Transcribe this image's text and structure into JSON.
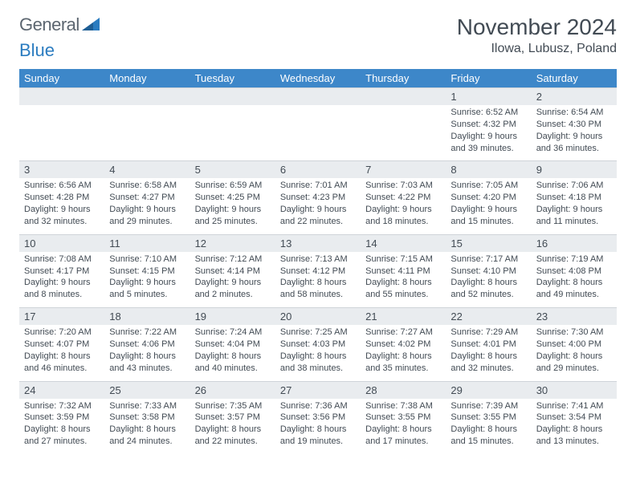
{
  "brand": {
    "general": "General",
    "blue": "Blue"
  },
  "header": {
    "month_title": "November 2024",
    "location": "Ilowa, Lubusz, Poland"
  },
  "colors": {
    "header_bg": "#3d87c9",
    "header_fg": "#ffffff",
    "numrow_bg": "#e9ecef",
    "text": "#424b54",
    "brand_gray": "#5c6670",
    "brand_blue": "#2b7cc0"
  },
  "weekdays": [
    "Sunday",
    "Monday",
    "Tuesday",
    "Wednesday",
    "Thursday",
    "Friday",
    "Saturday"
  ],
  "weeks": [
    {
      "nums": [
        "",
        "",
        "",
        "",
        "",
        "1",
        "2"
      ],
      "cells": [
        null,
        null,
        null,
        null,
        null,
        {
          "sunrise": "Sunrise: 6:52 AM",
          "sunset": "Sunset: 4:32 PM",
          "day1": "Daylight: 9 hours",
          "day2": "and 39 minutes."
        },
        {
          "sunrise": "Sunrise: 6:54 AM",
          "sunset": "Sunset: 4:30 PM",
          "day1": "Daylight: 9 hours",
          "day2": "and 36 minutes."
        }
      ]
    },
    {
      "nums": [
        "3",
        "4",
        "5",
        "6",
        "7",
        "8",
        "9"
      ],
      "cells": [
        {
          "sunrise": "Sunrise: 6:56 AM",
          "sunset": "Sunset: 4:28 PM",
          "day1": "Daylight: 9 hours",
          "day2": "and 32 minutes."
        },
        {
          "sunrise": "Sunrise: 6:58 AM",
          "sunset": "Sunset: 4:27 PM",
          "day1": "Daylight: 9 hours",
          "day2": "and 29 minutes."
        },
        {
          "sunrise": "Sunrise: 6:59 AM",
          "sunset": "Sunset: 4:25 PM",
          "day1": "Daylight: 9 hours",
          "day2": "and 25 minutes."
        },
        {
          "sunrise": "Sunrise: 7:01 AM",
          "sunset": "Sunset: 4:23 PM",
          "day1": "Daylight: 9 hours",
          "day2": "and 22 minutes."
        },
        {
          "sunrise": "Sunrise: 7:03 AM",
          "sunset": "Sunset: 4:22 PM",
          "day1": "Daylight: 9 hours",
          "day2": "and 18 minutes."
        },
        {
          "sunrise": "Sunrise: 7:05 AM",
          "sunset": "Sunset: 4:20 PM",
          "day1": "Daylight: 9 hours",
          "day2": "and 15 minutes."
        },
        {
          "sunrise": "Sunrise: 7:06 AM",
          "sunset": "Sunset: 4:18 PM",
          "day1": "Daylight: 9 hours",
          "day2": "and 11 minutes."
        }
      ]
    },
    {
      "nums": [
        "10",
        "11",
        "12",
        "13",
        "14",
        "15",
        "16"
      ],
      "cells": [
        {
          "sunrise": "Sunrise: 7:08 AM",
          "sunset": "Sunset: 4:17 PM",
          "day1": "Daylight: 9 hours",
          "day2": "and 8 minutes."
        },
        {
          "sunrise": "Sunrise: 7:10 AM",
          "sunset": "Sunset: 4:15 PM",
          "day1": "Daylight: 9 hours",
          "day2": "and 5 minutes."
        },
        {
          "sunrise": "Sunrise: 7:12 AM",
          "sunset": "Sunset: 4:14 PM",
          "day1": "Daylight: 9 hours",
          "day2": "and 2 minutes."
        },
        {
          "sunrise": "Sunrise: 7:13 AM",
          "sunset": "Sunset: 4:12 PM",
          "day1": "Daylight: 8 hours",
          "day2": "and 58 minutes."
        },
        {
          "sunrise": "Sunrise: 7:15 AM",
          "sunset": "Sunset: 4:11 PM",
          "day1": "Daylight: 8 hours",
          "day2": "and 55 minutes."
        },
        {
          "sunrise": "Sunrise: 7:17 AM",
          "sunset": "Sunset: 4:10 PM",
          "day1": "Daylight: 8 hours",
          "day2": "and 52 minutes."
        },
        {
          "sunrise": "Sunrise: 7:19 AM",
          "sunset": "Sunset: 4:08 PM",
          "day1": "Daylight: 8 hours",
          "day2": "and 49 minutes."
        }
      ]
    },
    {
      "nums": [
        "17",
        "18",
        "19",
        "20",
        "21",
        "22",
        "23"
      ],
      "cells": [
        {
          "sunrise": "Sunrise: 7:20 AM",
          "sunset": "Sunset: 4:07 PM",
          "day1": "Daylight: 8 hours",
          "day2": "and 46 minutes."
        },
        {
          "sunrise": "Sunrise: 7:22 AM",
          "sunset": "Sunset: 4:06 PM",
          "day1": "Daylight: 8 hours",
          "day2": "and 43 minutes."
        },
        {
          "sunrise": "Sunrise: 7:24 AM",
          "sunset": "Sunset: 4:04 PM",
          "day1": "Daylight: 8 hours",
          "day2": "and 40 minutes."
        },
        {
          "sunrise": "Sunrise: 7:25 AM",
          "sunset": "Sunset: 4:03 PM",
          "day1": "Daylight: 8 hours",
          "day2": "and 38 minutes."
        },
        {
          "sunrise": "Sunrise: 7:27 AM",
          "sunset": "Sunset: 4:02 PM",
          "day1": "Daylight: 8 hours",
          "day2": "and 35 minutes."
        },
        {
          "sunrise": "Sunrise: 7:29 AM",
          "sunset": "Sunset: 4:01 PM",
          "day1": "Daylight: 8 hours",
          "day2": "and 32 minutes."
        },
        {
          "sunrise": "Sunrise: 7:30 AM",
          "sunset": "Sunset: 4:00 PM",
          "day1": "Daylight: 8 hours",
          "day2": "and 29 minutes."
        }
      ]
    },
    {
      "nums": [
        "24",
        "25",
        "26",
        "27",
        "28",
        "29",
        "30"
      ],
      "cells": [
        {
          "sunrise": "Sunrise: 7:32 AM",
          "sunset": "Sunset: 3:59 PM",
          "day1": "Daylight: 8 hours",
          "day2": "and 27 minutes."
        },
        {
          "sunrise": "Sunrise: 7:33 AM",
          "sunset": "Sunset: 3:58 PM",
          "day1": "Daylight: 8 hours",
          "day2": "and 24 minutes."
        },
        {
          "sunrise": "Sunrise: 7:35 AM",
          "sunset": "Sunset: 3:57 PM",
          "day1": "Daylight: 8 hours",
          "day2": "and 22 minutes."
        },
        {
          "sunrise": "Sunrise: 7:36 AM",
          "sunset": "Sunset: 3:56 PM",
          "day1": "Daylight: 8 hours",
          "day2": "and 19 minutes."
        },
        {
          "sunrise": "Sunrise: 7:38 AM",
          "sunset": "Sunset: 3:55 PM",
          "day1": "Daylight: 8 hours",
          "day2": "and 17 minutes."
        },
        {
          "sunrise": "Sunrise: 7:39 AM",
          "sunset": "Sunset: 3:55 PM",
          "day1": "Daylight: 8 hours",
          "day2": "and 15 minutes."
        },
        {
          "sunrise": "Sunrise: 7:41 AM",
          "sunset": "Sunset: 3:54 PM",
          "day1": "Daylight: 8 hours",
          "day2": "and 13 minutes."
        }
      ]
    }
  ]
}
